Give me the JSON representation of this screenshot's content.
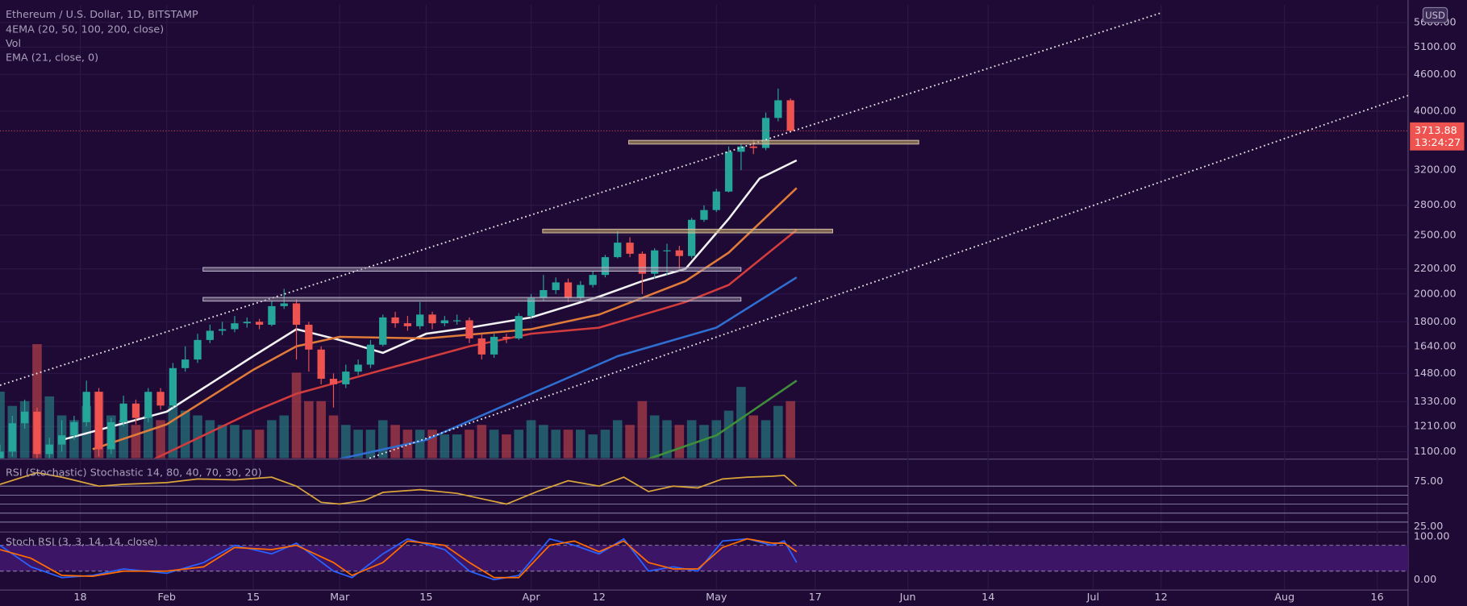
{
  "chart_data": [
    {
      "type": "candlestick",
      "title": "Ethereum / U.S. Dollar, 1D, BITSTAMP",
      "indicator_labels": [
        "4EMA (20, 50, 100, 200, close)",
        "Vol",
        "EMA (21, close, 0)"
      ],
      "currency": "USD",
      "countdown": "13:24:27",
      "last_price": {
        "value": 3713.88,
        "label": "3713.88"
      },
      "up_color": "#26a69a",
      "down_color": "#ef5350",
      "x": [
        "01-05",
        "01-07",
        "01-09",
        "01-11",
        "01-13",
        "01-15",
        "01-17",
        "01-19",
        "01-21",
        "01-23",
        "01-25",
        "01-27",
        "01-29",
        "01-31",
        "02-02",
        "02-04",
        "02-06",
        "02-08",
        "02-10",
        "02-12",
        "02-14",
        "02-16",
        "02-18",
        "02-20",
        "02-22",
        "02-24",
        "02-26",
        "02-28",
        "03-02",
        "03-04",
        "03-06",
        "03-08",
        "03-10",
        "03-12",
        "03-14",
        "03-16",
        "03-18",
        "03-20",
        "03-22",
        "03-24",
        "03-26",
        "03-28",
        "03-30",
        "04-01",
        "04-03",
        "04-05",
        "04-07",
        "04-09",
        "04-11",
        "04-13",
        "04-15",
        "04-17",
        "04-19",
        "04-21",
        "04-23",
        "04-25",
        "04-27",
        "04-29",
        "05-01",
        "05-03",
        "05-05",
        "05-07",
        "05-09",
        "05-11",
        "05-13"
      ],
      "open": [
        1050,
        1100,
        1225,
        1280,
        1090,
        1130,
        1170,
        1230,
        1380,
        1110,
        1230,
        1320,
        1250,
        1380,
        1310,
        1510,
        1560,
        1680,
        1740,
        1750,
        1790,
        1800,
        1780,
        1910,
        1930,
        1780,
        1620,
        1450,
        1420,
        1490,
        1530,
        1650,
        1830,
        1790,
        1770,
        1850,
        1790,
        1810,
        1810,
        1690,
        1590,
        1700,
        1690,
        1840,
        1970,
        2030,
        2090,
        1970,
        2070,
        2150,
        2300,
        2430,
        2330,
        2160,
        2360,
        2360,
        2310,
        2650,
        2750,
        2950,
        3430,
        3500,
        3480,
        3900,
        4170
      ],
      "high": [
        1130,
        1260,
        1340,
        1300,
        1160,
        1240,
        1260,
        1440,
        1400,
        1250,
        1360,
        1340,
        1400,
        1400,
        1540,
        1640,
        1720,
        1780,
        1800,
        1840,
        1830,
        1820,
        1950,
        2040,
        1960,
        1800,
        1640,
        1480,
        1530,
        1560,
        1680,
        1850,
        1870,
        1840,
        1940,
        1870,
        1840,
        1850,
        1830,
        1720,
        1720,
        1720,
        1860,
        2000,
        2150,
        2130,
        2120,
        2100,
        2180,
        2320,
        2540,
        2480,
        2350,
        2380,
        2420,
        2400,
        2670,
        2800,
        2980,
        3500,
        3540,
        3590,
        3980,
        4360,
        4200
      ],
      "low": [
        1020,
        1080,
        1200,
        1000,
        1040,
        1100,
        1150,
        1210,
        1080,
        1090,
        1210,
        1220,
        1230,
        1290,
        1300,
        1490,
        1540,
        1660,
        1710,
        1730,
        1760,
        1750,
        1770,
        1890,
        1560,
        1490,
        1420,
        1300,
        1400,
        1470,
        1510,
        1640,
        1760,
        1740,
        1750,
        1750,
        1770,
        1780,
        1660,
        1560,
        1570,
        1660,
        1680,
        1820,
        1950,
        2000,
        1940,
        1950,
        2050,
        2130,
        2290,
        2300,
        2000,
        2120,
        2150,
        2200,
        2290,
        2630,
        2730,
        2940,
        3200,
        3400,
        3450,
        3850,
        3690
      ],
      "close": [
        1100,
        1225,
        1280,
        1090,
        1130,
        1170,
        1230,
        1380,
        1110,
        1230,
        1320,
        1250,
        1380,
        1310,
        1510,
        1560,
        1680,
        1740,
        1750,
        1790,
        1800,
        1780,
        1910,
        1930,
        1780,
        1620,
        1450,
        1420,
        1490,
        1530,
        1650,
        1830,
        1790,
        1770,
        1850,
        1790,
        1810,
        1810,
        1690,
        1590,
        1700,
        1690,
        1840,
        1970,
        2030,
        2090,
        1970,
        2070,
        2150,
        2300,
        2430,
        2330,
        2160,
        2360,
        2360,
        2310,
        2650,
        2750,
        2950,
        3430,
        3500,
        3480,
        3900,
        4170,
        3714
      ],
      "volume": [
        70,
        55,
        60,
        120,
        65,
        45,
        40,
        55,
        70,
        45,
        40,
        35,
        45,
        40,
        55,
        50,
        45,
        40,
        35,
        35,
        30,
        30,
        40,
        45,
        90,
        60,
        60,
        45,
        35,
        30,
        30,
        40,
        35,
        30,
        30,
        30,
        25,
        25,
        30,
        35,
        30,
        25,
        30,
        40,
        35,
        30,
        30,
        30,
        25,
        30,
        40,
        35,
        60,
        45,
        40,
        35,
        40,
        35,
        40,
        50,
        75,
        45,
        40,
        55,
        60
      ],
      "lines": [
        {
          "color": "#f2f2f2",
          "x": [
            "01-15",
            "02-01",
            "02-15",
            "02-22",
            "03-01",
            "03-08",
            "03-15",
            "03-22",
            "04-01",
            "04-12",
            "04-19",
            "04-26",
            "05-03",
            "05-08",
            "05-14"
          ],
          "values": [
            1150,
            1280,
            1580,
            1750,
            1680,
            1600,
            1720,
            1760,
            1830,
            1980,
            2100,
            2200,
            2660,
            3100,
            3320
          ]
        },
        {
          "color": "#e07b39",
          "x": [
            "01-20",
            "02-01",
            "02-15",
            "02-22",
            "03-01",
            "03-15",
            "04-01",
            "04-12",
            "04-26",
            "05-03",
            "05-14"
          ],
          "values": [
            1110,
            1220,
            1500,
            1640,
            1700,
            1690,
            1750,
            1850,
            2100,
            2340,
            2990
          ]
        },
        {
          "color": "#d23c3c",
          "x": [
            "01-30",
            "02-15",
            "02-22",
            "03-08",
            "03-22",
            "04-01",
            "04-12",
            "04-26",
            "05-03",
            "05-14"
          ],
          "values": [
            1070,
            1280,
            1370,
            1500,
            1640,
            1720,
            1760,
            1940,
            2070,
            2550
          ]
        },
        {
          "color": "#2f6fd1",
          "x": [
            "03-01",
            "03-15",
            "04-01",
            "04-15",
            "05-01",
            "05-14"
          ],
          "values": [
            1070,
            1150,
            1370,
            1580,
            1760,
            2130
          ]
        },
        {
          "color": "#3f8f3a",
          "x": [
            "04-20",
            "05-01",
            "05-14"
          ],
          "values": [
            1070,
            1170,
            1440
          ]
        }
      ],
      "xlim": [
        "01-05",
        "08-21"
      ],
      "xticks": [
        {
          "value": "01-18",
          "label": "18"
        },
        {
          "value": "02-01",
          "label": "Feb"
        },
        {
          "value": "02-15",
          "label": "15"
        },
        {
          "value": "03-01",
          "label": "Mar"
        },
        {
          "value": "03-15",
          "label": "15"
        },
        {
          "value": "04-01",
          "label": "Apr"
        },
        {
          "value": "04-12",
          "label": "12"
        },
        {
          "value": "05-01",
          "label": "May"
        },
        {
          "value": "05-17",
          "label": "17"
        },
        {
          "value": "06-01",
          "label": "Jun"
        },
        {
          "value": "06-14",
          "label": "14"
        },
        {
          "value": "07-01",
          "label": "Jul"
        },
        {
          "value": "07-12",
          "label": "12"
        },
        {
          "value": "08-01",
          "label": "Aug"
        },
        {
          "value": "08-16",
          "label": "16"
        }
      ],
      "log_scale": true,
      "ylim": [
        1073,
        5990
      ],
      "yticks": [
        {
          "value": 1100,
          "label": "1100.00"
        },
        {
          "value": 1210,
          "label": "1210.00"
        },
        {
          "value": 1330,
          "label": "1330.00"
        },
        {
          "value": 1480,
          "label": "1480.00"
        },
        {
          "value": 1640,
          "label": "1640.00"
        },
        {
          "value": 1800,
          "label": "1800.00"
        },
        {
          "value": 2000,
          "label": "2000.00"
        },
        {
          "value": 2200,
          "label": "2200.00"
        },
        {
          "value": 2500,
          "label": "2500.00"
        },
        {
          "value": 2800,
          "label": "2800.00"
        },
        {
          "value": 3200,
          "label": "3200.00"
        },
        {
          "value": 4000,
          "label": "4000.00"
        },
        {
          "value": 4600,
          "label": "4600.00"
        },
        {
          "value": 5100,
          "label": "5100.00"
        },
        {
          "value": 5600,
          "label": "5600.00"
        }
      ]
    },
    {
      "type": "line",
      "title": "RSI (Stochastic) Stochastic 14, 80, 40, 70, 30, 20)",
      "x": [
        "01-05",
        "01-11",
        "01-15",
        "01-21",
        "01-25",
        "02-01",
        "02-06",
        "02-12",
        "02-18",
        "02-22",
        "02-26",
        "03-01",
        "03-05",
        "03-08",
        "03-14",
        "03-20",
        "03-24",
        "03-28",
        "04-02",
        "04-07",
        "04-12",
        "04-16",
        "04-20",
        "04-24",
        "04-28",
        "05-02",
        "05-06",
        "05-10",
        "05-12",
        "05-14"
      ],
      "series": [
        {
          "color": "#d9a53a",
          "values": [
            72,
            85,
            80,
            70,
            72,
            74,
            78,
            77,
            80,
            70,
            52,
            50,
            54,
            63,
            66,
            62,
            56,
            50,
            64,
            76,
            70,
            80,
            64,
            70,
            68,
            78,
            80,
            81,
            82,
            70
          ]
        }
      ],
      "bands": [
        70,
        60,
        50,
        40,
        30
      ],
      "ylim": [
        20,
        99
      ],
      "yticks": [
        {
          "value": 75,
          "label": "75.00"
        },
        {
          "value": 25,
          "label": "25.00"
        }
      ]
    },
    {
      "type": "line",
      "title": "Stoch RSI (3, 3, 14, 14, close)",
      "x": [
        "01-05",
        "01-10",
        "01-15",
        "01-20",
        "01-25",
        "02-01",
        "02-07",
        "02-12",
        "02-18",
        "02-22",
        "02-28",
        "03-03",
        "03-08",
        "03-12",
        "03-18",
        "03-22",
        "03-26",
        "03-30",
        "04-04",
        "04-08",
        "04-12",
        "04-16",
        "04-20",
        "04-24",
        "04-28",
        "05-02",
        "05-06",
        "05-10",
        "05-12",
        "05-14"
      ],
      "series": [
        {
          "color": "#2962ff",
          "values": [
            80,
            30,
            5,
            10,
            25,
            15,
            40,
            80,
            60,
            85,
            20,
            5,
            60,
            95,
            70,
            20,
            0,
            10,
            95,
            80,
            60,
            95,
            20,
            30,
            20,
            90,
            95,
            80,
            90,
            40
          ]
        },
        {
          "color": "#ff6d00",
          "values": [
            70,
            50,
            10,
            8,
            20,
            20,
            30,
            75,
            70,
            80,
            40,
            10,
            40,
            90,
            80,
            40,
            5,
            5,
            80,
            90,
            65,
            90,
            40,
            25,
            25,
            75,
            95,
            85,
            85,
            65
          ]
        }
      ],
      "bands": [
        80,
        20
      ],
      "ylim": [
        -21.7,
        108.7
      ],
      "yticks": [
        {
          "value": 100,
          "label": "100.00"
        },
        {
          "value": 0,
          "label": "0.00"
        }
      ]
    }
  ]
}
